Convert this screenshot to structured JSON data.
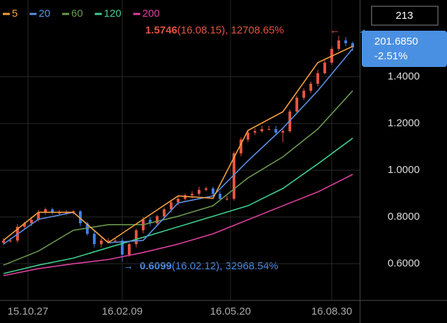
{
  "chart_data": {
    "type": "candlestick",
    "x": [
      0,
      1,
      2,
      3,
      4,
      5,
      6,
      7,
      8,
      9,
      10,
      11,
      12,
      13,
      14,
      15,
      16,
      17,
      18,
      19,
      20,
      21,
      22,
      23,
      24,
      25,
      26,
      27,
      28,
      29,
      30,
      31,
      32,
      33,
      34,
      35,
      36,
      37,
      38,
      39,
      40,
      41,
      42,
      43,
      44,
      45,
      46,
      47,
      48,
      49,
      50
    ],
    "open": [
      0.69,
      0.699,
      0.699,
      0.758,
      0.773,
      0.788,
      0.818,
      0.833,
      0.818,
      0.818,
      0.818,
      0.824,
      0.773,
      0.728,
      0.684,
      0.699,
      0.699,
      0.699,
      0.639,
      0.684,
      0.743,
      0.788,
      0.773,
      0.803,
      0.833,
      0.863,
      0.878,
      0.893,
      0.899,
      0.916,
      0.922,
      0.899,
      0.878,
      0.878,
      1.072,
      1.131,
      1.161,
      1.167,
      1.176,
      1.176,
      1.161,
      1.167,
      1.251,
      1.31,
      1.34,
      1.37,
      1.415,
      1.46,
      1.519,
      1.555,
      1.543
    ],
    "high": [
      0.71,
      0.71,
      0.77,
      0.78,
      0.8,
      0.83,
      0.84,
      0.84,
      0.83,
      0.83,
      0.83,
      0.83,
      0.78,
      0.74,
      0.71,
      0.71,
      0.71,
      0.71,
      0.69,
      0.75,
      0.8,
      0.8,
      0.81,
      0.84,
      0.87,
      0.89,
      0.9,
      0.91,
      0.93,
      0.93,
      0.93,
      0.91,
      0.89,
      1.08,
      1.14,
      1.17,
      1.18,
      1.19,
      1.19,
      1.19,
      1.18,
      1.26,
      1.32,
      1.35,
      1.38,
      1.43,
      1.47,
      1.53,
      1.5746,
      1.57,
      1.55
    ],
    "low": [
      0.68,
      0.69,
      0.69,
      0.75,
      0.76,
      0.78,
      0.81,
      0.81,
      0.81,
      0.81,
      0.81,
      0.76,
      0.72,
      0.67,
      0.67,
      0.69,
      0.69,
      0.6099,
      0.63,
      0.67,
      0.73,
      0.76,
      0.76,
      0.79,
      0.82,
      0.85,
      0.87,
      0.88,
      0.89,
      0.91,
      0.89,
      0.87,
      0.87,
      0.87,
      1.06,
      1.12,
      1.15,
      1.16,
      1.17,
      1.15,
      1.12,
      1.16,
      1.24,
      1.3,
      1.33,
      1.36,
      1.41,
      1.45,
      1.51,
      1.53,
      1.51
    ],
    "close": [
      0.699,
      0.699,
      0.758,
      0.773,
      0.788,
      0.818,
      0.833,
      0.818,
      0.818,
      0.818,
      0.824,
      0.773,
      0.728,
      0.684,
      0.699,
      0.699,
      0.699,
      0.639,
      0.684,
      0.743,
      0.788,
      0.773,
      0.803,
      0.833,
      0.863,
      0.878,
      0.893,
      0.899,
      0.916,
      0.922,
      0.899,
      0.878,
      0.878,
      1.072,
      1.131,
      1.161,
      1.167,
      1.176,
      1.176,
      1.161,
      1.167,
      1.251,
      1.31,
      1.34,
      1.37,
      1.415,
      1.46,
      1.519,
      1.555,
      1.543,
      1.525
    ],
    "up_color": "#e5533f",
    "down_color": "#3f7fe0",
    "series": [
      {
        "name": "5",
        "color": "#f5a040",
        "x": [
          0,
          5,
          10,
          15,
          20,
          25,
          30,
          35,
          40,
          45,
          50
        ],
        "values": [
          0.7,
          0.82,
          0.82,
          0.69,
          0.79,
          0.89,
          0.88,
          1.17,
          1.25,
          1.46,
          1.53
        ]
      },
      {
        "name": "20",
        "color": "#5b8fe6",
        "x": [
          0,
          5,
          10,
          15,
          20,
          25,
          30,
          35,
          40,
          45,
          50
        ],
        "values": [
          0.684,
          0.79,
          0.82,
          0.69,
          0.7,
          0.86,
          0.89,
          1.04,
          1.18,
          1.34,
          1.52
        ]
      },
      {
        "name": "60",
        "color": "#6a9a50",
        "x": [
          0,
          5,
          10,
          15,
          20,
          25,
          30,
          35,
          40,
          45,
          50
        ],
        "values": [
          0.594,
          0.654,
          0.743,
          0.767,
          0.767,
          0.803,
          0.848,
          0.967,
          1.057,
          1.176,
          1.34
        ]
      },
      {
        "name": "120",
        "color": "#3fcf8e",
        "x": [
          0,
          5,
          10,
          15,
          20,
          25,
          30,
          35,
          40,
          45,
          50
        ],
        "values": [
          0.558,
          0.594,
          0.624,
          0.669,
          0.713,
          0.758,
          0.803,
          0.848,
          0.922,
          1.027,
          1.137
        ]
      },
      {
        "name": "200",
        "color": "#e040a0",
        "x": [
          0,
          5,
          10,
          15,
          20,
          25,
          30,
          35,
          40,
          45,
          50
        ],
        "values": [
          0.549,
          0.579,
          0.6,
          0.618,
          0.648,
          0.684,
          0.728,
          0.788,
          0.848,
          0.907,
          0.982
        ]
      }
    ],
    "xlim": [
      -0.5,
      51
    ],
    "ylim": [
      0.445,
      1.728
    ],
    "xticks": [
      {
        "value": 3.5,
        "label": "15.10.27"
      },
      {
        "value": 17,
        "label": "16.02.09"
      },
      {
        "value": 32.5,
        "label": "16.05.20"
      },
      {
        "value": 47,
        "label": "16.08.30"
      }
    ],
    "yticks": [
      {
        "value": 0.6,
        "label": "0.6000"
      },
      {
        "value": 0.8,
        "label": "0.8000"
      },
      {
        "value": 1.0,
        "label": "1.0000"
      },
      {
        "value": 1.2,
        "label": "1.2000"
      },
      {
        "value": 1.4,
        "label": "1.4000"
      }
    ],
    "grid": true,
    "max_annotation": {
      "arrow": "←",
      "value_text": "1.5746",
      "detail": "(16.08.15), 12708.65%"
    },
    "min_annotation": {
      "arrow": "→",
      "value_text": "0.6099",
      "detail": "(16.02.12), 32968.54%"
    },
    "period_box": "213",
    "price_tag": {
      "price": "201.6850",
      "change": "-2.51%"
    }
  }
}
